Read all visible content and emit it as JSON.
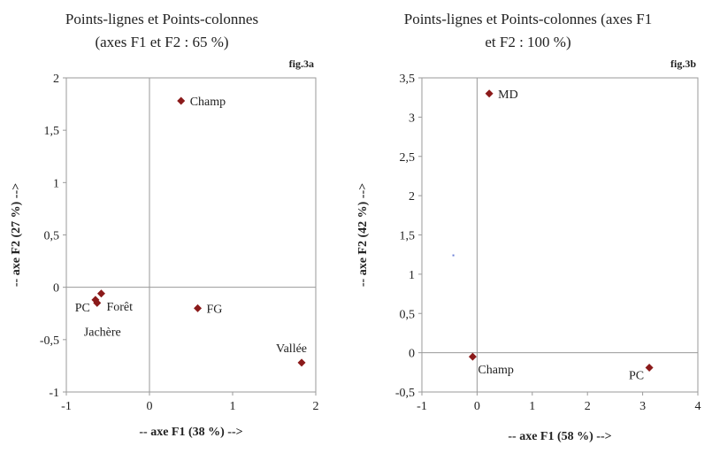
{
  "chart_data": [
    {
      "type": "scatter",
      "title_lines": [
        "Points-lignes et Points-colonnes",
        "(axes F1 et F2 : 65 %)"
      ],
      "fig_label": "fig.3a",
      "xlabel": "-- axe F1 (38 %) -->",
      "ylabel": "-- axe F2 (27 %) -->",
      "xlim": [
        -1,
        2
      ],
      "ylim": [
        -1,
        2
      ],
      "xticks": [
        -1,
        0,
        1,
        2
      ],
      "xtick_labels": [
        "-1",
        "0",
        "1",
        "2"
      ],
      "yticks": [
        -1,
        -0.5,
        0,
        0.5,
        1,
        1.5,
        2
      ],
      "ytick_labels": [
        "-1",
        "-0,5",
        "0",
        "0,5",
        "1",
        "1,5",
        "2"
      ],
      "marker_color": "#8b1a1a",
      "points": [
        {
          "label": "Champ",
          "x": 0.38,
          "y": 1.78,
          "label_pos": "right"
        },
        {
          "label": "FG",
          "x": 0.58,
          "y": -0.2,
          "label_pos": "right"
        },
        {
          "label": "Vallée",
          "x": 1.83,
          "y": -0.72,
          "label_pos": "above-left"
        },
        {
          "label": "PC",
          "x": -0.65,
          "y": -0.12,
          "label_pos": "left-below"
        },
        {
          "label": "Forêt",
          "x": -0.58,
          "y": -0.06,
          "label_pos": "right-below"
        },
        {
          "label": "Jachère",
          "x": -0.63,
          "y": -0.15,
          "label_pos": "below"
        }
      ]
    },
    {
      "type": "scatter",
      "title_lines": [
        "Points-lignes et Points-colonnes (axes F1",
        "et F2 : 100 %)"
      ],
      "fig_label": "fig.3b",
      "xlabel": "-- axe F1 (58 %) -->",
      "ylabel": "-- axe F2 (42 %) -->",
      "xlim": [
        -1,
        4
      ],
      "ylim": [
        -0.5,
        3.5
      ],
      "xticks": [
        -1,
        0,
        1,
        2,
        3,
        4
      ],
      "xtick_labels": [
        "-1",
        "0",
        "1",
        "2",
        "3",
        "4"
      ],
      "yticks": [
        -0.5,
        0,
        0.5,
        1,
        1.5,
        2,
        2.5,
        3,
        3.5
      ],
      "ytick_labels": [
        "-0,5",
        "0",
        "0,5",
        "1",
        "1,5",
        "2",
        "2,5",
        "3",
        "3,5"
      ],
      "marker_color": "#8b1a1a",
      "points": [
        {
          "label": "MD",
          "x": 0.22,
          "y": 3.3,
          "label_pos": "right"
        },
        {
          "label": "Champ",
          "x": -0.08,
          "y": -0.05,
          "label_pos": "right-below"
        },
        {
          "label": "PC",
          "x": 3.12,
          "y": -0.19,
          "label_pos": "left-below"
        }
      ],
      "extra_points": [
        {
          "x": -0.43,
          "y": 1.24,
          "color": "#6a7fd6"
        }
      ]
    }
  ]
}
